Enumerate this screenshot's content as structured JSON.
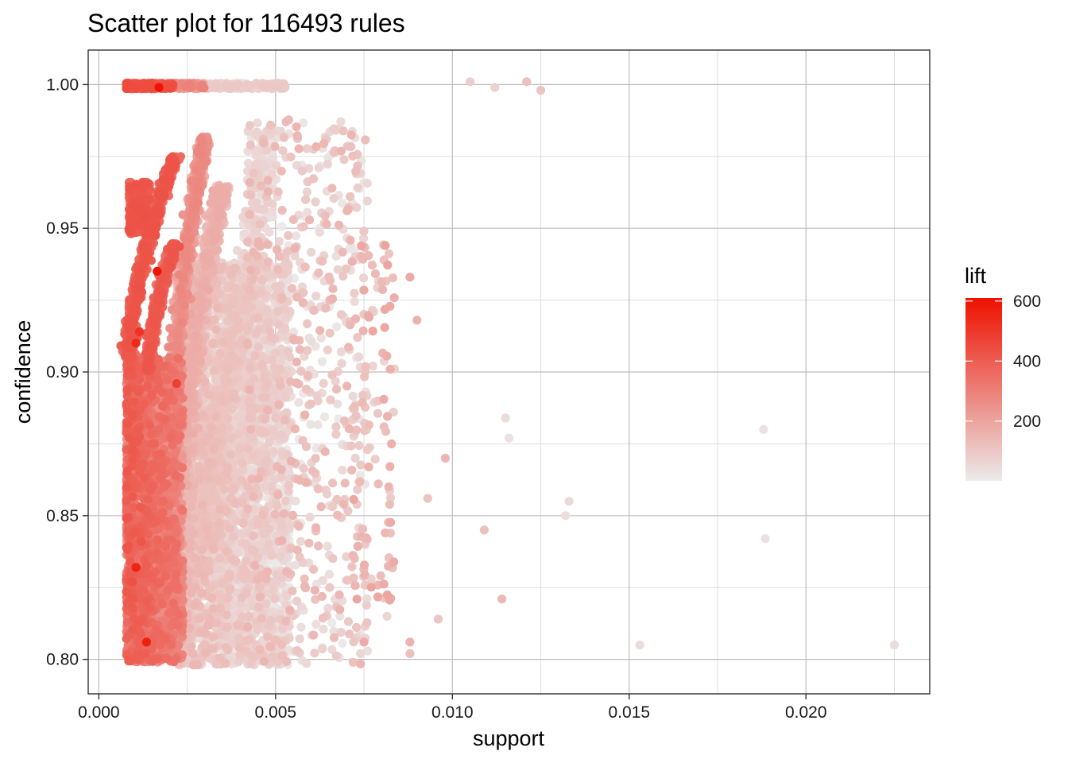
{
  "chart_data": {
    "type": "scatter",
    "title": "Scatter plot for 116493 rules",
    "xlabel": "support",
    "ylabel": "confidence",
    "xlim": [
      -0.0003,
      0.0235
    ],
    "ylim": [
      0.788,
      1.012
    ],
    "x_ticks": [
      0.0,
      0.005,
      0.01,
      0.015,
      0.02
    ],
    "x_tick_labels": [
      "0.000",
      "0.005",
      "0.010",
      "0.015",
      "0.020"
    ],
    "y_ticks": [
      0.8,
      0.85,
      0.9,
      0.95,
      1.0
    ],
    "y_tick_labels": [
      "0.80",
      "0.85",
      "0.90",
      "0.95",
      "1.00"
    ],
    "grid": true,
    "color_scale": {
      "name": "lift",
      "min": 1,
      "max": 610,
      "low_color": "#ebebeb",
      "high_color": "#ee1100",
      "ticks": [
        200,
        400,
        600
      ],
      "tick_labels": [
        "200",
        "400",
        "600"
      ]
    },
    "legend_position": "right",
    "points": [
      {
        "support": 0.0017,
        "confidence": 0.999,
        "lift": 605
      },
      {
        "support": 0.00165,
        "confidence": 0.935,
        "lift": 600
      },
      {
        "support": 0.00115,
        "confidence": 0.914,
        "lift": 520
      },
      {
        "support": 0.00105,
        "confidence": 0.91,
        "lift": 540
      },
      {
        "support": 0.0022,
        "confidence": 0.896,
        "lift": 480
      },
      {
        "support": 0.00105,
        "confidence": 0.832,
        "lift": 560
      },
      {
        "support": 0.00135,
        "confidence": 0.806,
        "lift": 570
      },
      {
        "support": 0.00095,
        "confidence": 0.827,
        "lift": 430
      },
      {
        "support": 0.0012,
        "confidence": 0.841,
        "lift": 420
      },
      {
        "support": 0.0011,
        "confidence": 0.88,
        "lift": 400
      },
      {
        "support": 0.0105,
        "confidence": 1.001,
        "lift": 80
      },
      {
        "support": 0.0112,
        "confidence": 0.999,
        "lift": 70
      },
      {
        "support": 0.0121,
        "confidence": 1.001,
        "lift": 120
      },
      {
        "support": 0.0125,
        "confidence": 0.998,
        "lift": 110
      },
      {
        "support": 0.0115,
        "confidence": 0.884,
        "lift": 40
      },
      {
        "support": 0.0116,
        "confidence": 0.877,
        "lift": 30
      },
      {
        "support": 0.0133,
        "confidence": 0.855,
        "lift": 50
      },
      {
        "support": 0.0132,
        "confidence": 0.85,
        "lift": 40
      },
      {
        "support": 0.0109,
        "confidence": 0.845,
        "lift": 120
      },
      {
        "support": 0.0114,
        "confidence": 0.821,
        "lift": 140
      },
      {
        "support": 0.0153,
        "confidence": 0.805,
        "lift": 40
      },
      {
        "support": 0.0188,
        "confidence": 0.88,
        "lift": 30
      },
      {
        "support": 0.01885,
        "confidence": 0.842,
        "lift": 30
      },
      {
        "support": 0.0225,
        "confidence": 0.805,
        "lift": 40
      },
      {
        "support": 0.0098,
        "confidence": 0.87,
        "lift": 150
      },
      {
        "support": 0.0093,
        "confidence": 0.856,
        "lift": 110
      },
      {
        "support": 0.0096,
        "confidence": 0.814,
        "lift": 100
      },
      {
        "support": 0.0088,
        "confidence": 0.806,
        "lift": 160
      },
      {
        "support": 0.0088,
        "confidence": 0.802,
        "lift": 120
      },
      {
        "support": 0.0088,
        "confidence": 0.933,
        "lift": 180
      },
      {
        "support": 0.009,
        "confidence": 0.918,
        "lift": 160
      },
      {
        "support": 0.0081,
        "confidence": 0.944,
        "lift": 200
      },
      {
        "support": 0.0082,
        "confidence": 0.86,
        "lift": 150
      },
      {
        "support": 0.00815,
        "confidence": 0.815,
        "lift": 60
      },
      {
        "support": 0.0081,
        "confidence": 0.844,
        "lift": 140
      },
      {
        "support": 0.0074,
        "confidence": 0.802,
        "lift": 60
      },
      {
        "support": 0.0075,
        "confidence": 0.806,
        "lift": 180
      }
    ]
  }
}
